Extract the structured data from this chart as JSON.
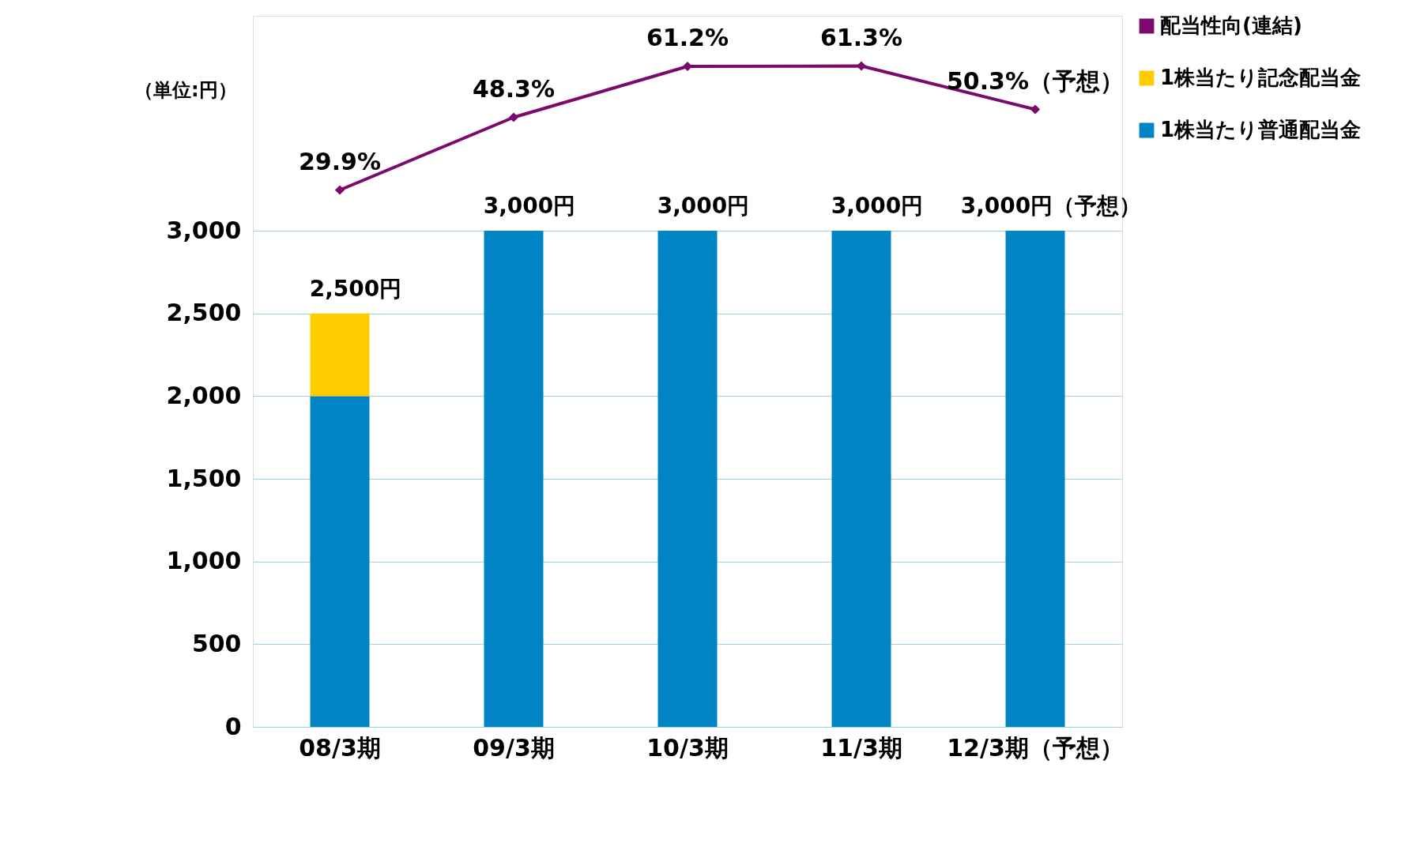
{
  "chart_data": {
    "type": "bar",
    "stacked": true,
    "categories": [
      "08/3期",
      "09/3期",
      "10/3期",
      "11/3期",
      "12/3期（予想）"
    ],
    "series": [
      {
        "name": "1株当たり普通配当金",
        "color": "#0084c4",
        "values": [
          2000,
          3000,
          3000,
          3000,
          3000
        ]
      },
      {
        "name": "1株当たり記念配当金",
        "color": "#ffcc00",
        "values": [
          500,
          0,
          0,
          0,
          0
        ]
      },
      {
        "name": "配当性向(連結)",
        "type": "line",
        "axis": "y2",
        "color": "#7b0a6e",
        "marker": "diamond",
        "values": [
          29.9,
          48.3,
          61.2,
          61.3,
          50.3
        ],
        "value_labels": [
          "29.9%",
          "48.3%",
          "61.2%",
          "61.3%",
          "50.3%（予想）"
        ]
      }
    ],
    "totals": [
      "2,500円",
      "3,000円",
      "3,000円",
      "3,000円",
      "3,000円（予想）"
    ],
    "ylim": [
      0,
      4300
    ],
    "yticks": [
      {
        "value": 0,
        "label": "0"
      },
      {
        "value": 500,
        "label": "500"
      },
      {
        "value": 1000,
        "label": "1,000"
      },
      {
        "value": 1500,
        "label": "1,500"
      },
      {
        "value": 2000,
        "label": "2,000"
      },
      {
        "value": 2500,
        "label": "2,500"
      },
      {
        "value": 3000,
        "label": "3,000"
      }
    ],
    "y2lim": [
      -106,
      74
    ],
    "tick_labels": "y",
    "grid": "y",
    "legend": "right",
    "annotations": [
      "（単位:円）"
    ]
  }
}
